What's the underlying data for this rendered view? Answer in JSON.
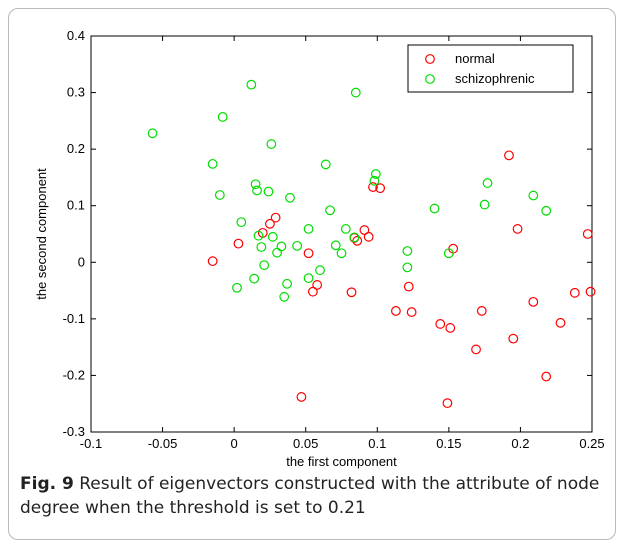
{
  "chart_data": {
    "type": "scatter",
    "title": "",
    "xlabel": "the first component",
    "ylabel": "the second component",
    "xlim": [
      -0.1,
      0.25
    ],
    "ylim": [
      -0.3,
      0.4
    ],
    "xticks": [
      -0.1,
      -0.05,
      0,
      0.05,
      0.1,
      0.15,
      0.2,
      0.25
    ],
    "xtick_labels": [
      "-0.1",
      "-0.05",
      "0",
      "0.05",
      "0.1",
      "0.15",
      "0.2",
      "0.25"
    ],
    "yticks": [
      -0.3,
      -0.2,
      -0.1,
      0,
      0.1,
      0.2,
      0.3,
      0.4
    ],
    "ytick_labels": [
      "-0.3",
      "-0.2",
      "-0.1",
      "0",
      "0.1",
      "0.2",
      "0.3",
      "0.4"
    ],
    "grid": false,
    "legend_position": "top-right",
    "marker": "open-circle",
    "series": [
      {
        "name": "normal",
        "color": "#ff0000",
        "points": [
          [
            -0.015,
            0.002
          ],
          [
            0.003,
            0.033
          ],
          [
            0.02,
            0.052
          ],
          [
            0.025,
            0.068
          ],
          [
            0.029,
            0.079
          ],
          [
            0.052,
            0.016
          ],
          [
            0.055,
            -0.052
          ],
          [
            0.058,
            -0.04
          ],
          [
            0.047,
            -0.238
          ],
          [
            0.082,
            -0.053
          ],
          [
            0.084,
            0.043
          ],
          [
            0.086,
            0.038
          ],
          [
            0.091,
            0.057
          ],
          [
            0.094,
            0.045
          ],
          [
            0.097,
            0.133
          ],
          [
            0.102,
            0.131
          ],
          [
            0.113,
            -0.086
          ],
          [
            0.122,
            -0.043
          ],
          [
            0.124,
            -0.088
          ],
          [
            0.144,
            -0.109
          ],
          [
            0.149,
            -0.249
          ],
          [
            0.151,
            -0.116
          ],
          [
            0.153,
            0.024
          ],
          [
            0.169,
            -0.154
          ],
          [
            0.173,
            -0.086
          ],
          [
            0.192,
            0.189
          ],
          [
            0.195,
            -0.135
          ],
          [
            0.198,
            0.059
          ],
          [
            0.209,
            -0.07
          ],
          [
            0.218,
            -0.202
          ],
          [
            0.228,
            -0.107
          ],
          [
            0.238,
            -0.054
          ],
          [
            0.247,
            0.05
          ],
          [
            0.249,
            -0.052
          ]
        ]
      },
      {
        "name": "schizophrenic",
        "color": "#00dd00",
        "points": [
          [
            -0.057,
            0.228
          ],
          [
            -0.015,
            0.174
          ],
          [
            -0.01,
            0.119
          ],
          [
            -0.008,
            0.257
          ],
          [
            0.002,
            -0.045
          ],
          [
            0.005,
            0.071
          ],
          [
            0.012,
            0.314
          ],
          [
            0.014,
            -0.029
          ],
          [
            0.015,
            0.138
          ],
          [
            0.016,
            0.127
          ],
          [
            0.017,
            0.047
          ],
          [
            0.019,
            0.027
          ],
          [
            0.021,
            -0.005
          ],
          [
            0.024,
            0.125
          ],
          [
            0.026,
            0.209
          ],
          [
            0.027,
            0.045
          ],
          [
            0.03,
            0.017
          ],
          [
            0.033,
            0.028
          ],
          [
            0.035,
            -0.061
          ],
          [
            0.037,
            -0.038
          ],
          [
            0.039,
            0.114
          ],
          [
            0.044,
            0.029
          ],
          [
            0.052,
            0.059
          ],
          [
            0.052,
            -0.028
          ],
          [
            0.06,
            -0.014
          ],
          [
            0.064,
            0.173
          ],
          [
            0.067,
            0.092
          ],
          [
            0.071,
            0.03
          ],
          [
            0.075,
            0.016
          ],
          [
            0.078,
            0.059
          ],
          [
            0.084,
            0.044
          ],
          [
            0.085,
            0.3
          ],
          [
            0.099,
            0.156
          ],
          [
            0.098,
            0.144
          ],
          [
            0.14,
            0.095
          ],
          [
            0.121,
            0.02
          ],
          [
            0.121,
            -0.009
          ],
          [
            0.15,
            0.016
          ],
          [
            0.175,
            0.102
          ],
          [
            0.177,
            0.14
          ],
          [
            0.209,
            0.118
          ],
          [
            0.218,
            0.091
          ]
        ]
      }
    ]
  },
  "caption": {
    "label": "Fig. 9",
    "text": " Result of eigenvectors constructed with the attribute of node degree when the threshold is set to 0.21"
  }
}
